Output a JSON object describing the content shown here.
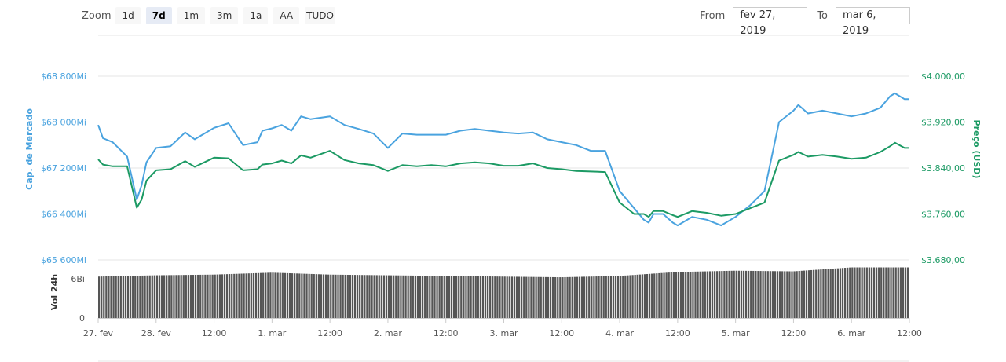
{
  "zoom": {
    "label": "Zoom",
    "buttons": [
      "1d",
      "7d",
      "1m",
      "3m",
      "1a",
      "AA",
      "TUDO"
    ],
    "active": "7d"
  },
  "range": {
    "from_label": "From",
    "from_value": "fev 27, 2019",
    "to_label": "To",
    "to_value": "mar 6, 2019"
  },
  "colors": {
    "market_cap": "#4aa3df",
    "price": "#1c9a64",
    "volume": "#555555"
  },
  "chart_data": {
    "type": "line",
    "ylabel_left": "Cap. de Mercado",
    "ylabel_right": "Preço (USD)",
    "volume_label": "Vol 24h",
    "yticks_left": [
      "$68 800Mi",
      "$68 000Mi",
      "$67 200Mi",
      "$66 400Mi",
      "$65 600Mi"
    ],
    "yticks_right": [
      "$4.000,00",
      "$3.920,00",
      "$3.840,00",
      "$3.760,00",
      "$3.680,00"
    ],
    "volume_ticks": [
      "6Bi",
      "0"
    ],
    "xticks": [
      "27. fev",
      "28. fev",
      "12:00",
      "1. mar",
      "12:00",
      "2. mar",
      "12:00",
      "3. mar",
      "12:00",
      "4. mar",
      "12:00",
      "5. mar",
      "12:00",
      "6. mar",
      "12:00"
    ],
    "ylim_left": [
      65600,
      68800
    ],
    "ylim_right": [
      3680,
      4000
    ],
    "x_range_hours": [
      0,
      168
    ],
    "series": [
      {
        "name": "Cap. de Mercado",
        "axis": "left",
        "x": [
          0,
          1,
          3,
          6,
          8,
          9,
          10,
          12,
          15,
          18,
          20,
          24,
          27,
          30,
          33,
          34,
          36,
          38,
          40,
          42,
          44,
          48,
          51,
          54,
          57,
          60,
          63,
          66,
          69,
          72,
          75,
          78,
          81,
          84,
          87,
          90,
          93,
          96,
          99,
          102,
          105,
          108,
          111,
          113,
          114,
          115,
          117,
          119,
          120,
          123,
          126,
          129,
          132,
          135,
          138,
          141,
          144,
          145,
          147,
          150,
          153,
          156,
          159,
          162,
          164,
          165,
          167,
          168
        ],
        "values": [
          67950,
          67720,
          67650,
          67400,
          66650,
          66900,
          67300,
          67550,
          67580,
          67820,
          67700,
          67900,
          67980,
          67600,
          67650,
          67850,
          67890,
          67950,
          67850,
          68100,
          68050,
          68100,
          67950,
          67880,
          67800,
          67550,
          67800,
          67780,
          67780,
          67780,
          67850,
          67880,
          67850,
          67820,
          67800,
          67820,
          67700,
          67650,
          67600,
          67500,
          67500,
          66800,
          66500,
          66300,
          66250,
          66400,
          66400,
          66250,
          66200,
          66350,
          66300,
          66200,
          66350,
          66550,
          66800,
          68000,
          68200,
          68300,
          68150,
          68200,
          68150,
          68100,
          68150,
          68250,
          68450,
          68500,
          68400,
          68400
        ]
      },
      {
        "name": "Preço (USD)",
        "axis": "right",
        "x": [
          0,
          1,
          3,
          6,
          8,
          9,
          10,
          12,
          15,
          18,
          20,
          24,
          27,
          30,
          33,
          34,
          36,
          38,
          40,
          42,
          44,
          48,
          51,
          54,
          57,
          60,
          63,
          66,
          69,
          72,
          75,
          78,
          81,
          84,
          87,
          90,
          93,
          96,
          99,
          102,
          105,
          108,
          111,
          113,
          114,
          115,
          117,
          119,
          120,
          123,
          126,
          129,
          132,
          135,
          138,
          141,
          144,
          145,
          147,
          150,
          153,
          156,
          159,
          162,
          164,
          165,
          167,
          168
        ],
        "values": [
          3855,
          3846,
          3843,
          3843,
          3771,
          3785,
          3818,
          3836,
          3838,
          3852,
          3842,
          3858,
          3857,
          3836,
          3838,
          3846,
          3848,
          3853,
          3848,
          3862,
          3858,
          3870,
          3854,
          3848,
          3845,
          3835,
          3845,
          3843,
          3845,
          3843,
          3848,
          3850,
          3848,
          3844,
          3844,
          3848,
          3840,
          3838,
          3835,
          3834,
          3833,
          3780,
          3760,
          3760,
          3755,
          3765,
          3765,
          3758,
          3755,
          3765,
          3762,
          3757,
          3760,
          3770,
          3780,
          3853,
          3863,
          3868,
          3860,
          3863,
          3860,
          3856,
          3858,
          3868,
          3878,
          3884,
          3875,
          3875
        ]
      },
      {
        "name": "Vol 24h",
        "axis": "volume",
        "x": [
          0,
          12,
          24,
          36,
          48,
          60,
          72,
          84,
          96,
          108,
          120,
          132,
          144,
          156,
          168
        ],
        "values": [
          6.3,
          6.5,
          6.6,
          6.9,
          6.6,
          6.5,
          6.4,
          6.3,
          6.2,
          6.4,
          7.0,
          7.2,
          7.1,
          7.7,
          7.7
        ]
      }
    ]
  }
}
